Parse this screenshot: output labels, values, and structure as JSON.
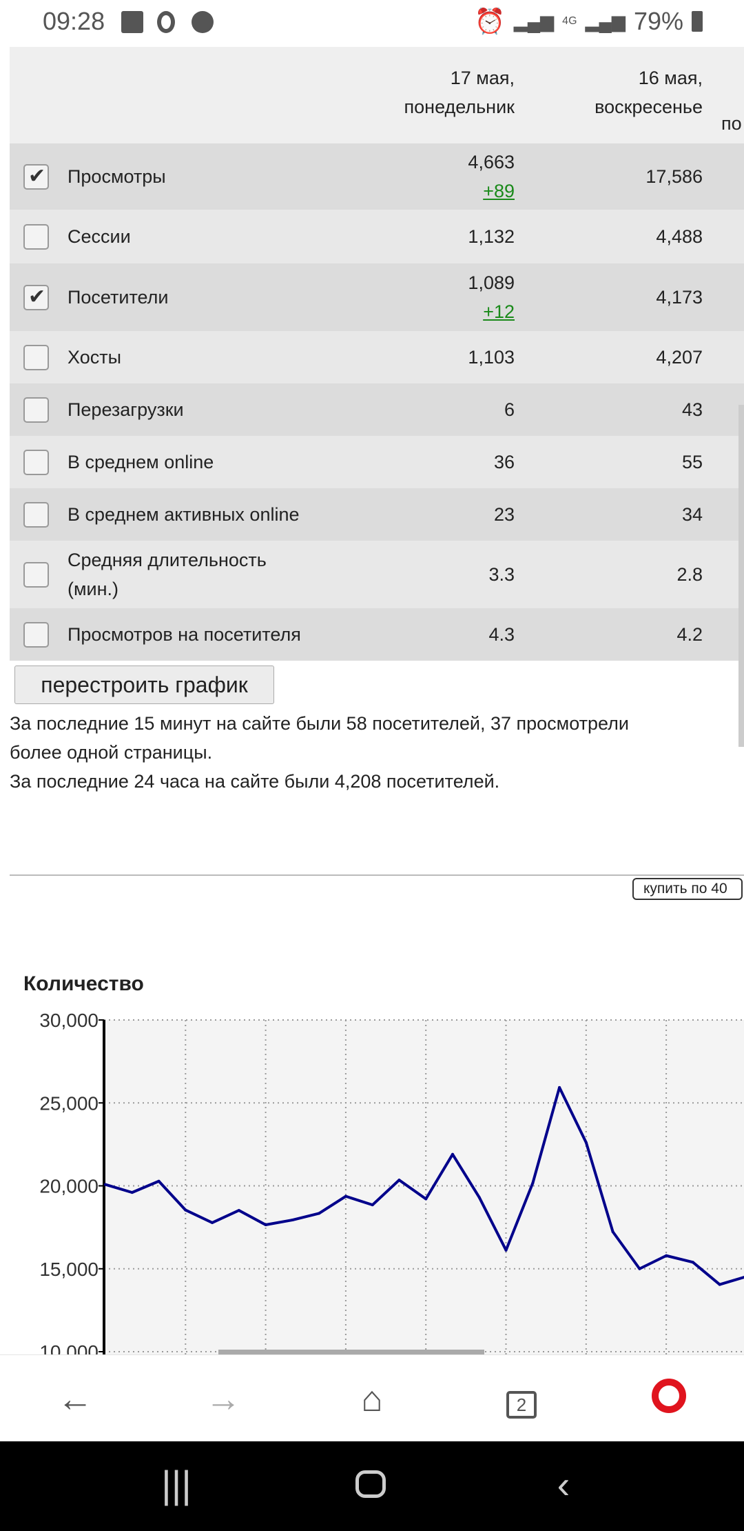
{
  "status_bar": {
    "time": "09:28",
    "network": "4G",
    "battery": "79%"
  },
  "table": {
    "headers": [
      {
        "line1": "17 мая,",
        "line2": "понедельник"
      },
      {
        "line1": "16 мая,",
        "line2": "воскресенье"
      },
      {
        "line1": "",
        "line2": "по"
      }
    ],
    "rows": [
      {
        "label": "Просмотры",
        "checked": true,
        "v1": "4,663",
        "d1": "+89",
        "v2": "17,586"
      },
      {
        "label": "Сессии",
        "checked": false,
        "v1": "1,132",
        "v2": "4,488"
      },
      {
        "label": "Посетители",
        "checked": true,
        "v1": "1,089",
        "d1": "+12",
        "v2": "4,173"
      },
      {
        "label": "Хосты",
        "checked": false,
        "v1": "1,103",
        "v2": "4,207"
      },
      {
        "label": "Перезагрузки",
        "checked": false,
        "v1": "6",
        "v2": "43"
      },
      {
        "label": "В среднем online",
        "checked": false,
        "v1": "36",
        "v2": "55"
      },
      {
        "label": "В среднем активных online",
        "checked": false,
        "v1": "23",
        "v2": "34"
      },
      {
        "label": "Средняя длительность (мин.)",
        "checked": false,
        "v1": "3.3",
        "v2": "2.8"
      },
      {
        "label": "Просмотров на посетителя",
        "checked": false,
        "v1": "4.3",
        "v2": "4.2"
      }
    ]
  },
  "rebuild_button": "перестроить график",
  "info": {
    "line1": "За последние 15 минут на сайте были 58 посетителей, 37 просмотрели",
    "line2": "более одной страницы.",
    "line3": "За последние 24 часа на сайте были 4,208 посетителей."
  },
  "buy_button": "купить по 40",
  "chart_data": {
    "type": "line",
    "ylabel": "Количество",
    "ylim": [
      10000,
      30000
    ],
    "yticks": [
      "10,000",
      "15,000",
      "20,000",
      "25,000",
      "30,000"
    ],
    "grid": true,
    "series": [
      {
        "color": "#00008b",
        "values": [
          20080,
          19600,
          20280,
          18540,
          17780,
          18520,
          17650,
          17940,
          18340,
          19370,
          18850,
          20350,
          19210,
          21900,
          19300,
          16120,
          20160,
          25930,
          22610,
          17230,
          15000,
          15790,
          15390,
          14050,
          14530
        ]
      }
    ]
  },
  "bottom_nav": {
    "tabs_count": "2"
  }
}
